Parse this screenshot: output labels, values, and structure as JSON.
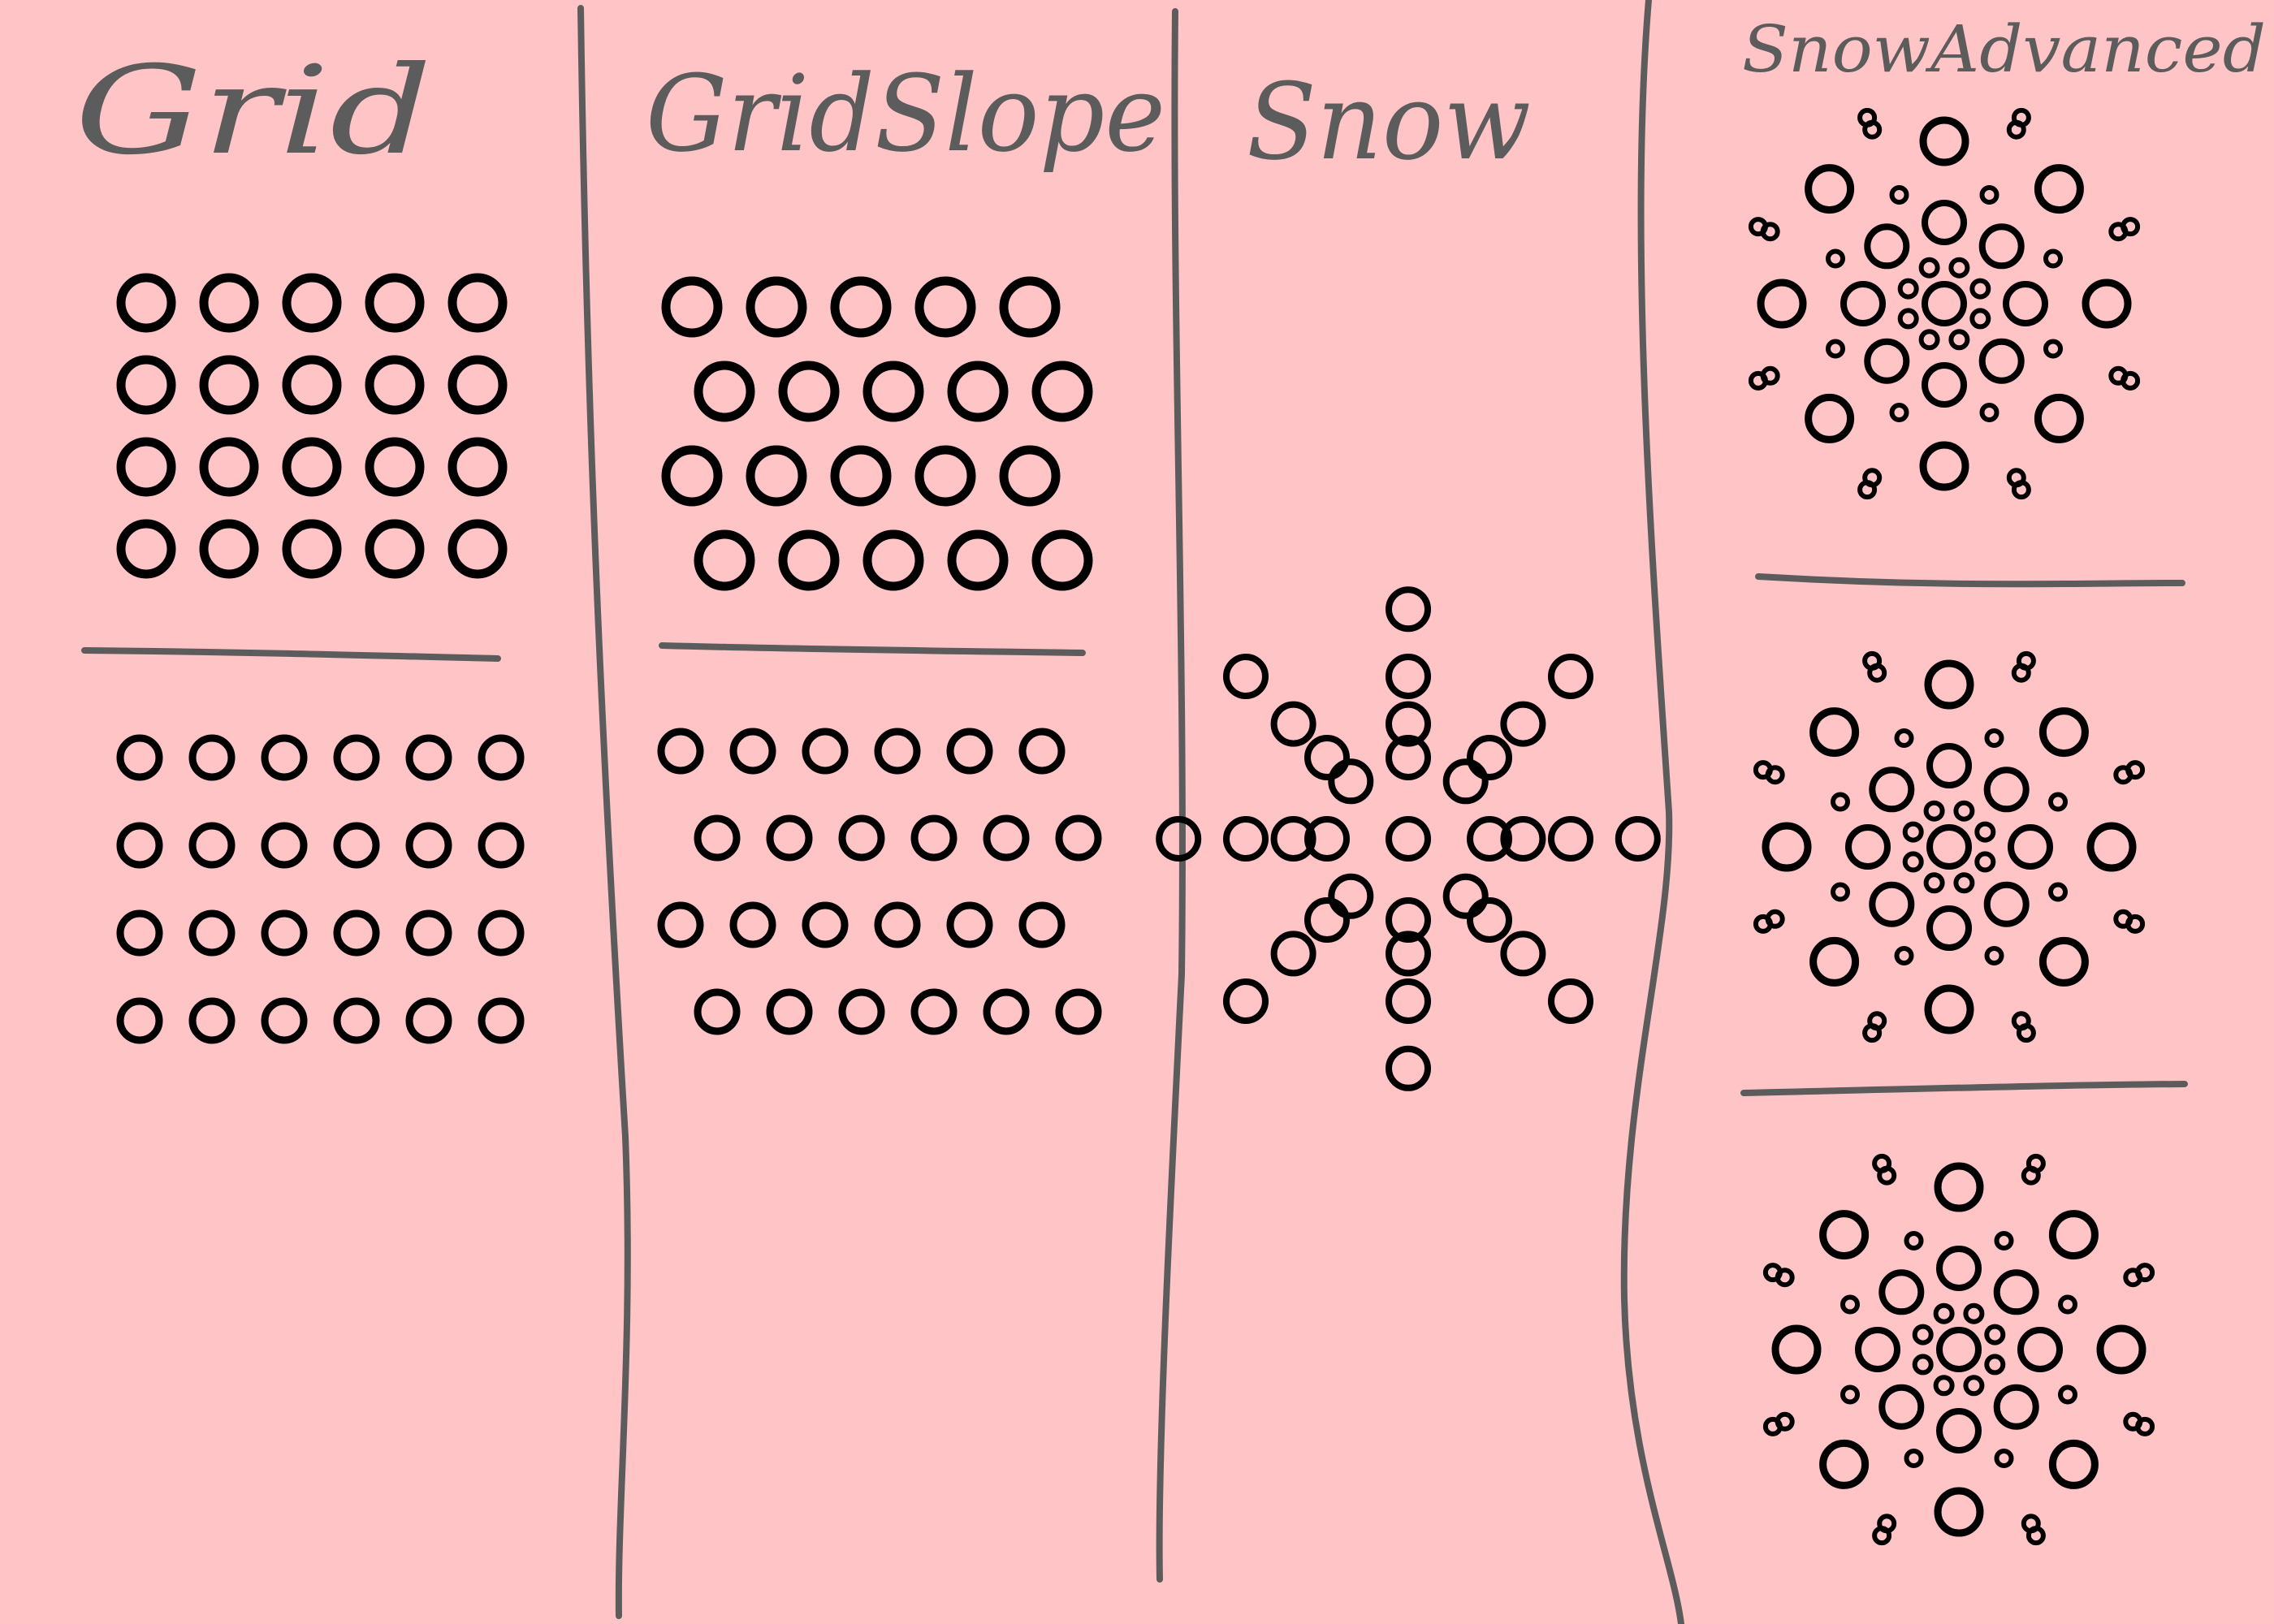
{
  "columns": [
    {
      "title": "Grid",
      "patterns": [
        {
          "kind": "grid",
          "cols": 5,
          "rows": 4,
          "offset_alternate_rows": false,
          "size": "large"
        },
        {
          "kind": "grid",
          "cols": 6,
          "rows": 4,
          "offset_alternate_rows": false,
          "size": "small"
        }
      ]
    },
    {
      "title": "GridSlope",
      "patterns": [
        {
          "kind": "grid",
          "cols": 5,
          "rows": 4,
          "offset_alternate_rows": true,
          "size": "large"
        },
        {
          "kind": "grid",
          "cols": 6,
          "rows": 4,
          "offset_alternate_rows": true,
          "size": "small"
        }
      ]
    },
    {
      "title": "Snow",
      "patterns": [
        {
          "kind": "snow",
          "variant": "basic"
        }
      ]
    },
    {
      "title": "SnowAdvanced",
      "patterns": [
        {
          "kind": "snow",
          "variant": "advanced-1"
        },
        {
          "kind": "snow",
          "variant": "advanced-2"
        },
        {
          "kind": "snow",
          "variant": "advanced-3"
        }
      ]
    }
  ],
  "colors": {
    "background": "#ffc4c5",
    "lines": "#5c5c5c",
    "circles": "#000000"
  }
}
